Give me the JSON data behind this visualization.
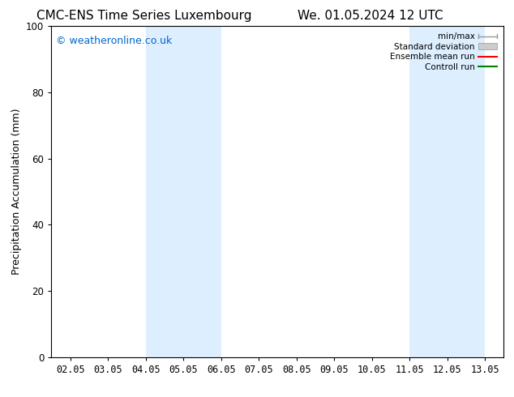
{
  "title": "CMC-ENS Time Series Luxembourg",
  "title2": "We. 01.05.2024 12 UTC",
  "ylabel": "Precipitation Accumulation (mm)",
  "watermark": "© weatheronline.co.uk",
  "watermark_color": "#0066cc",
  "ylim": [
    0,
    100
  ],
  "background_color": "#ffffff",
  "plot_bg_color": "#ffffff",
  "x_ticks": [
    0,
    1,
    2,
    3,
    4,
    5,
    6,
    7,
    8,
    9,
    10,
    11
  ],
  "x_tick_labels": [
    "02.05",
    "03.05",
    "04.05",
    "05.05",
    "06.05",
    "07.05",
    "08.05",
    "09.05",
    "10.05",
    "11.05",
    "12.05",
    "13.05"
  ],
  "shaded_regions": [
    {
      "x_start": 2,
      "x_end": 4,
      "color": "#ddeeff"
    },
    {
      "x_start": 9,
      "x_end": 11,
      "color": "#ddeeff"
    }
  ],
  "minmax_color": "#999999",
  "stddev_color": "#cccccc",
  "ensemble_mean_color": "#ff0000",
  "control_run_color": "#008000",
  "legend_labels": [
    "min/max",
    "Standard deviation",
    "Ensemble mean run",
    "Controll run"
  ],
  "title_fontsize": 11,
  "tick_fontsize": 8.5,
  "ylabel_fontsize": 9,
  "watermark_fontsize": 9
}
